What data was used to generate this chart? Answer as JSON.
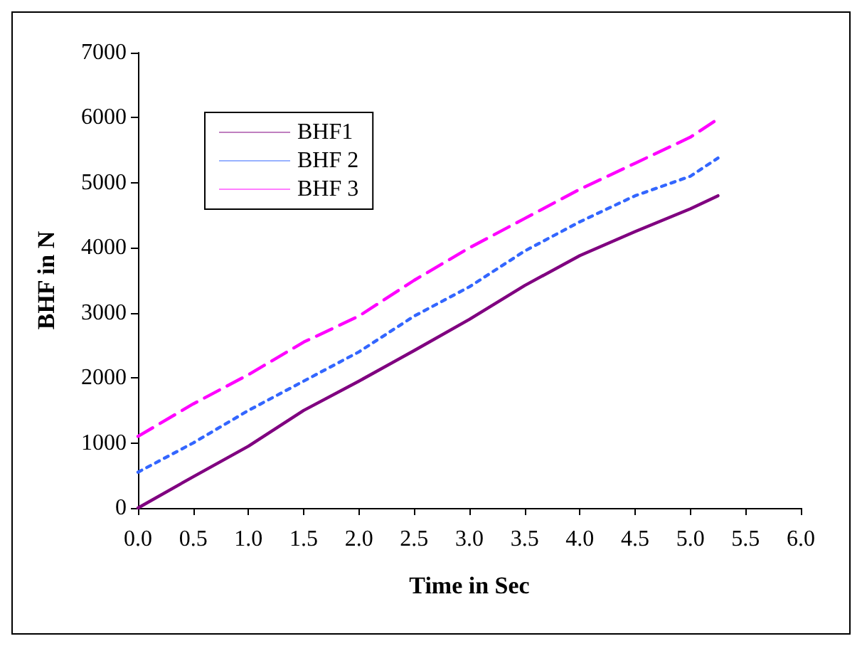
{
  "chart_data": {
    "type": "line",
    "xlabel": "Time in Sec",
    "ylabel": "BHF in N",
    "xlim": [
      0,
      6
    ],
    "xticks": [
      {
        "value": 0,
        "label": "0.0"
      },
      {
        "value": 0.5,
        "label": "0.5"
      },
      {
        "value": 1,
        "label": "1.0"
      },
      {
        "value": 1.5,
        "label": "1.5"
      },
      {
        "value": 2,
        "label": "2.0"
      },
      {
        "value": 2.5,
        "label": "2.5"
      },
      {
        "value": 3,
        "label": "3.0"
      },
      {
        "value": 3.5,
        "label": "3.5"
      },
      {
        "value": 4,
        "label": "4.0"
      },
      {
        "value": 4.5,
        "label": "4.5"
      },
      {
        "value": 5,
        "label": "5.0"
      },
      {
        "value": 5.5,
        "label": "5.5"
      },
      {
        "value": 6,
        "label": "6.0"
      }
    ],
    "ylim": [
      0,
      7000
    ],
    "yticks": [
      0,
      1000,
      2000,
      3000,
      4000,
      5000,
      6000,
      7000
    ],
    "grid": false,
    "legend": "top left",
    "marker": "none",
    "x": [
      0,
      0.5,
      1,
      1.5,
      2,
      2.5,
      3,
      3.5,
      4,
      4.5,
      5,
      5.25
    ],
    "series": [
      {
        "name": "BHF1",
        "color": "#800080",
        "line_style": "solid",
        "values": [
          0,
          480,
          950,
          1500,
          1950,
          2420,
          2900,
          3420,
          3880,
          4250,
          4600,
          4800
        ]
      },
      {
        "name": "BHF 2",
        "color": "#3366ff",
        "line_style": "dotted",
        "values": [
          550,
          1000,
          1500,
          1950,
          2400,
          2950,
          3400,
          3950,
          4400,
          4800,
          5100,
          5380
        ]
      },
      {
        "name": "BHF 3",
        "color": "#ff00ff",
        "line_style": "dashed",
        "values": [
          1100,
          1600,
          2050,
          2550,
          2950,
          3500,
          4000,
          4450,
          4900,
          5300,
          5700,
          5980
        ]
      }
    ]
  }
}
